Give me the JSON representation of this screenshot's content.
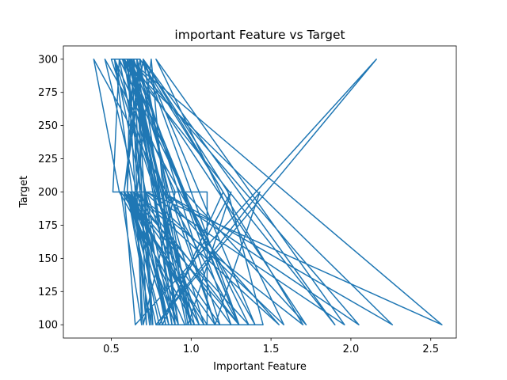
{
  "chart_data": {
    "type": "line",
    "title": "important Feature vs Target",
    "xlabel": "Important Feature",
    "ylabel": "Target",
    "xlim": [
      0.2,
      2.66
    ],
    "ylim": [
      90,
      310
    ],
    "xticks": [
      0.5,
      1.0,
      1.5,
      2.0,
      2.5
    ],
    "xtick_labels": [
      "0.5",
      "1.0",
      "1.5",
      "2.0",
      "2.5"
    ],
    "yticks": [
      100,
      125,
      150,
      175,
      200,
      225,
      250,
      275,
      300
    ],
    "ytick_labels": [
      "100",
      "125",
      "150",
      "175",
      "200",
      "225",
      "250",
      "275",
      "300"
    ],
    "grid": false,
    "series": [
      {
        "color": "#1f77b4",
        "x": [
          0.74,
          0.52,
          0.86,
          0.6,
          0.62,
          1.02,
          0.55,
          0.39,
          1.3,
          0.7,
          0.58,
          0.92,
          0.68,
          0.58,
          1.1,
          1.1,
          0.51,
          0.55,
          0.88,
          0.66,
          0.75,
          0.6,
          0.82,
          1.2,
          0.68,
          0.5,
          1.05,
          0.62,
          0.8,
          1.25,
          0.98,
          0.7,
          1.4,
          0.46,
          0.86,
          0.64,
          1.55,
          0.82,
          0.9,
          0.62,
          1.72,
          0.96,
          0.58,
          1.9,
          0.7,
          1.0,
          0.62,
          2.05,
          0.82,
          0.63,
          0.69,
          0.56,
          1.15,
          0.86,
          0.66,
          0.88,
          0.55,
          1.36,
          0.6,
          0.78,
          1.45,
          1.23,
          0.7,
          1.7,
          0.64,
          0.92,
          0.62,
          0.97,
          0.61,
          2.57,
          0.72,
          1.0,
          0.57,
          2.26,
          0.82,
          0.6,
          0.7,
          0.9,
          0.52,
          1.05,
          0.6,
          1.18,
          0.66,
          0.72,
          0.64,
          1.25,
          0.64,
          0.6,
          0.9,
          0.75,
          0.66,
          1.3,
          0.6,
          0.76,
          0.71,
          1.58,
          0.78,
          1.96,
          0.72,
          1.0,
          0.62,
          1.15,
          1.43,
          0.78,
          2.16,
          0.65,
          0.58,
          1.3,
          0.62,
          0.64,
          0.68,
          0.84,
          0.58,
          1.08,
          0.6,
          0.96
        ],
        "y": [
          100,
          300,
          100,
          200,
          300,
          100,
          200,
          300,
          100,
          300,
          200,
          100,
          300,
          200,
          100,
          200,
          200,
          300,
          100,
          300,
          100,
          200,
          100,
          200,
          300,
          300,
          100,
          200,
          100,
          200,
          100,
          300,
          100,
          300,
          100,
          200,
          100,
          200,
          100,
          300,
          100,
          200,
          300,
          100,
          300,
          100,
          300,
          100,
          200,
          300,
          100,
          200,
          100,
          200,
          300,
          100,
          300,
          100,
          200,
          100,
          100,
          200,
          300,
          100,
          200,
          100,
          300,
          100,
          300,
          100,
          200,
          100,
          300,
          100,
          200,
          300,
          100,
          200,
          300,
          100,
          200,
          100,
          300,
          100,
          200,
          100,
          300,
          200,
          100,
          300,
          200,
          100,
          300,
          100,
          200,
          100,
          300,
          100,
          200,
          100,
          300,
          100,
          200,
          100,
          300,
          100,
          200,
          100,
          300,
          300,
          200,
          100,
          300,
          100,
          200,
          100
        ]
      }
    ]
  }
}
